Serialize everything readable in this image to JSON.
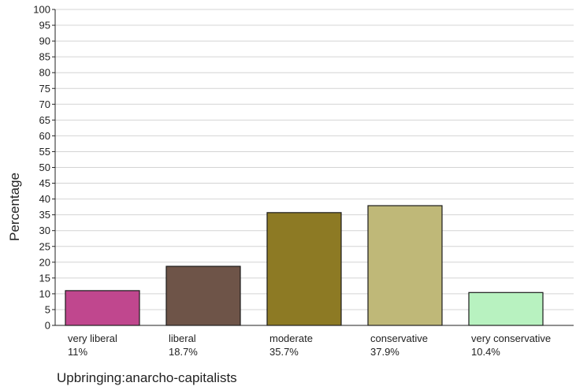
{
  "chart_data": {
    "type": "bar",
    "categories": [
      "very liberal",
      "liberal",
      "moderate",
      "conservative",
      "very conservative"
    ],
    "values": [
      11,
      18.7,
      35.7,
      37.9,
      10.4
    ],
    "value_labels": [
      "11%",
      "18.7%",
      "35.7%",
      "37.9%",
      "10.4%"
    ],
    "colors": [
      "#c0478e",
      "#6e5448",
      "#8d7a24",
      "#bfb878",
      "#b8f2c0"
    ],
    "ylabel": "Percentage",
    "xlabel": "Upbringing:anarcho-capitalists",
    "ylim": [
      0,
      100
    ],
    "yticks": [
      0,
      5,
      10,
      15,
      20,
      25,
      30,
      35,
      40,
      45,
      50,
      55,
      60,
      65,
      70,
      75,
      80,
      85,
      90,
      95,
      100
    ],
    "grid": true
  }
}
